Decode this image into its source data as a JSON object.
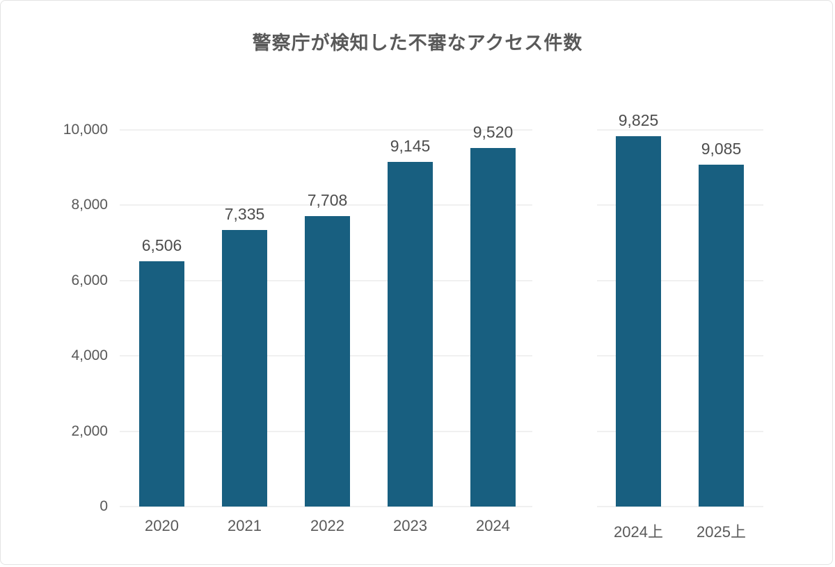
{
  "title": "警察庁が検知した不審なアクセス件数",
  "colors": {
    "bar": "#185f80",
    "grid": "#f0f0f0",
    "title_text": "#595959",
    "axis_text": "#595959",
    "value_text": "#4d4d4d",
    "border": "#e3e3e3",
    "background": "#ffffff"
  },
  "chart_data": {
    "type": "bar",
    "title": "警察庁が検知した不審なアクセス件数",
    "xlabel": "",
    "ylabel": "",
    "ylim": [
      0,
      10000
    ],
    "yticks": [
      0,
      2000,
      4000,
      6000,
      8000,
      10000
    ],
    "ytick_labels": [
      "0",
      "2,000",
      "4,000",
      "6,000",
      "8,000",
      "10,000"
    ],
    "grid": true,
    "legend": false,
    "bar_color": "#185f80",
    "groups": [
      {
        "name": "annual",
        "categories": [
          "2020",
          "2021",
          "2022",
          "2023",
          "2024"
        ],
        "values": [
          6506,
          7335,
          7708,
          9145,
          9520
        ],
        "value_labels": [
          "6,506",
          "7,335",
          "7,708",
          "9,145",
          "9,520"
        ]
      },
      {
        "name": "first-half-year",
        "categories": [
          "2024上",
          "2025上"
        ],
        "values": [
          9825,
          9085
        ],
        "value_labels": [
          "9,825",
          "9,085"
        ]
      }
    ]
  }
}
